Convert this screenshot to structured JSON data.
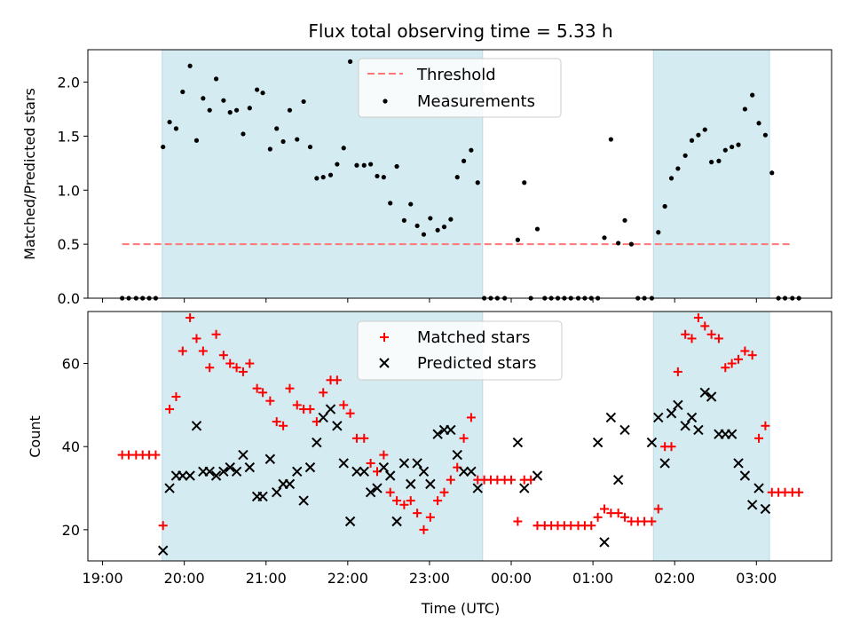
{
  "chart_data": {
    "type": "scatter",
    "title": "Flux total observing time = 5.33 h",
    "xlabel": "Time (UTC)",
    "x_ticks": [
      {
        "h": 19,
        "label": "19:00"
      },
      {
        "h": 20,
        "label": "20:00"
      },
      {
        "h": 21,
        "label": "21:00"
      },
      {
        "h": 22,
        "label": "22:00"
      },
      {
        "h": 23,
        "label": "23:00"
      },
      {
        "h": 24,
        "label": "00:00"
      },
      {
        "h": 25,
        "label": "01:00"
      },
      {
        "h": 26,
        "label": "02:00"
      },
      {
        "h": 27,
        "label": "03:00"
      }
    ],
    "xlim": [
      18.82,
      27.92
    ],
    "shaded_spans": [
      [
        19.73,
        23.65
      ],
      [
        25.74,
        27.16
      ]
    ],
    "top": {
      "ylabel": "Matched/Predicted stars",
      "ylim": [
        0,
        2.3
      ],
      "yticks": [
        0,
        0.5,
        1.0,
        1.5,
        2.0
      ],
      "ytick_labels": [
        "0.0",
        "0.5",
        "1.0",
        "1.5",
        "2.0"
      ],
      "threshold": {
        "name": "Threshold",
        "y": 0.5,
        "x_range": [
          19.24,
          27.45
        ],
        "color": "#ff7777"
      },
      "measurements_name": "Measurements",
      "measurements": [
        [
          19.24,
          0
        ],
        [
          19.32,
          0
        ],
        [
          19.41,
          0
        ],
        [
          19.49,
          0
        ],
        [
          19.57,
          0
        ],
        [
          19.65,
          0
        ],
        [
          19.74,
          1.4
        ],
        [
          19.82,
          1.63
        ],
        [
          19.9,
          1.57
        ],
        [
          19.98,
          1.91
        ],
        [
          20.07,
          2.15
        ],
        [
          20.15,
          1.46
        ],
        [
          20.23,
          1.85
        ],
        [
          20.31,
          1.74
        ],
        [
          20.39,
          2.03
        ],
        [
          20.48,
          1.83
        ],
        [
          20.56,
          1.72
        ],
        [
          20.64,
          1.74
        ],
        [
          20.72,
          1.52
        ],
        [
          20.8,
          1.76
        ],
        [
          20.89,
          1.93
        ],
        [
          20.96,
          1.9
        ],
        [
          21.05,
          1.38
        ],
        [
          21.13,
          1.57
        ],
        [
          21.21,
          1.45
        ],
        [
          21.29,
          1.74
        ],
        [
          21.38,
          1.47
        ],
        [
          21.46,
          1.82
        ],
        [
          21.54,
          1.4
        ],
        [
          21.62,
          1.11
        ],
        [
          21.7,
          1.12
        ],
        [
          21.79,
          1.14
        ],
        [
          21.87,
          1.24
        ],
        [
          21.95,
          1.39
        ],
        [
          22.03,
          2.19
        ],
        [
          22.11,
          1.23
        ],
        [
          22.2,
          1.23
        ],
        [
          22.28,
          1.24
        ],
        [
          22.36,
          1.13
        ],
        [
          22.44,
          1.12
        ],
        [
          22.52,
          0.88
        ],
        [
          22.6,
          1.22
        ],
        [
          22.69,
          0.72
        ],
        [
          22.77,
          0.87
        ],
        [
          22.85,
          0.67
        ],
        [
          22.93,
          0.59
        ],
        [
          23.01,
          0.74
        ],
        [
          23.1,
          0.63
        ],
        [
          23.18,
          0.66
        ],
        [
          23.26,
          0.73
        ],
        [
          23.34,
          1.12
        ],
        [
          23.42,
          1.27
        ],
        [
          23.51,
          1.37
        ],
        [
          23.59,
          1.07
        ],
        [
          23.67,
          0
        ],
        [
          23.75,
          0
        ],
        [
          23.83,
          0
        ],
        [
          23.92,
          0
        ],
        [
          24.08,
          0.54
        ],
        [
          24.16,
          1.07
        ],
        [
          24.24,
          0
        ],
        [
          24.32,
          0.64
        ],
        [
          24.41,
          0
        ],
        [
          24.49,
          0
        ],
        [
          24.57,
          0
        ],
        [
          24.65,
          0
        ],
        [
          24.73,
          0
        ],
        [
          24.82,
          0
        ],
        [
          24.9,
          0
        ],
        [
          24.98,
          0
        ],
        [
          25.06,
          0
        ],
        [
          25.14,
          0.56
        ],
        [
          25.22,
          1.47
        ],
        [
          25.31,
          0.51
        ],
        [
          25.39,
          0.72
        ],
        [
          25.47,
          0.5
        ],
        [
          25.55,
          0
        ],
        [
          25.63,
          0
        ],
        [
          25.72,
          0
        ],
        [
          25.8,
          0.61
        ],
        [
          25.88,
          0.85
        ],
        [
          25.96,
          1.11
        ],
        [
          26.04,
          1.2
        ],
        [
          26.13,
          1.32
        ],
        [
          26.21,
          1.46
        ],
        [
          26.29,
          1.51
        ],
        [
          26.37,
          1.56
        ],
        [
          26.45,
          1.26
        ],
        [
          26.54,
          1.27
        ],
        [
          26.62,
          1.37
        ],
        [
          26.7,
          1.4
        ],
        [
          26.78,
          1.42
        ],
        [
          26.86,
          1.75
        ],
        [
          26.95,
          1.88
        ],
        [
          27.03,
          1.62
        ],
        [
          27.11,
          1.51
        ],
        [
          27.19,
          1.16
        ],
        [
          27.27,
          0
        ],
        [
          27.35,
          0
        ],
        [
          27.44,
          0
        ],
        [
          27.52,
          0
        ]
      ]
    },
    "bottom": {
      "ylabel": "Count",
      "ylim": [
        12.5,
        72.5
      ],
      "yticks": [
        20,
        40,
        60
      ],
      "ytick_labels": [
        "20",
        "40",
        "60"
      ],
      "matched_name": "Matched stars",
      "predicted_name": "Predicted stars",
      "matched_color": "#ff0000",
      "predicted_color": "#000000",
      "matched": [
        [
          19.24,
          38
        ],
        [
          19.32,
          38
        ],
        [
          19.41,
          38
        ],
        [
          19.49,
          38
        ],
        [
          19.57,
          38
        ],
        [
          19.65,
          38
        ],
        [
          19.74,
          21
        ],
        [
          19.82,
          49
        ],
        [
          19.9,
          52
        ],
        [
          19.98,
          63
        ],
        [
          20.07,
          71
        ],
        [
          20.15,
          66
        ],
        [
          20.23,
          63
        ],
        [
          20.31,
          59
        ],
        [
          20.39,
          67
        ],
        [
          20.48,
          62
        ],
        [
          20.56,
          60
        ],
        [
          20.64,
          59
        ],
        [
          20.72,
          58
        ],
        [
          20.8,
          60
        ],
        [
          20.89,
          54
        ],
        [
          20.96,
          53
        ],
        [
          21.05,
          51
        ],
        [
          21.13,
          46
        ],
        [
          21.21,
          45
        ],
        [
          21.29,
          54
        ],
        [
          21.38,
          50
        ],
        [
          21.46,
          49
        ],
        [
          21.54,
          49
        ],
        [
          21.62,
          46
        ],
        [
          21.7,
          53
        ],
        [
          21.79,
          56
        ],
        [
          21.87,
          56
        ],
        [
          21.95,
          50
        ],
        [
          22.03,
          48
        ],
        [
          22.11,
          42
        ],
        [
          22.2,
          42
        ],
        [
          22.28,
          36
        ],
        [
          22.36,
          34
        ],
        [
          22.44,
          38
        ],
        [
          22.52,
          29
        ],
        [
          22.6,
          27
        ],
        [
          22.69,
          26
        ],
        [
          22.77,
          27
        ],
        [
          22.85,
          24
        ],
        [
          22.93,
          20
        ],
        [
          23.01,
          23
        ],
        [
          23.1,
          27
        ],
        [
          23.18,
          29
        ],
        [
          23.26,
          32
        ],
        [
          23.34,
          35
        ],
        [
          23.42,
          42
        ],
        [
          23.51,
          47
        ],
        [
          23.59,
          32
        ],
        [
          23.67,
          32
        ],
        [
          23.75,
          32
        ],
        [
          23.83,
          32
        ],
        [
          23.92,
          32
        ],
        [
          24.0,
          32
        ],
        [
          24.08,
          22
        ],
        [
          24.16,
          32
        ],
        [
          24.24,
          32
        ],
        [
          24.32,
          21
        ],
        [
          24.41,
          21
        ],
        [
          24.49,
          21
        ],
        [
          24.57,
          21
        ],
        [
          24.65,
          21
        ],
        [
          24.73,
          21
        ],
        [
          24.82,
          21
        ],
        [
          24.9,
          21
        ],
        [
          24.98,
          21
        ],
        [
          25.06,
          23
        ],
        [
          25.14,
          25
        ],
        [
          25.22,
          24
        ],
        [
          25.31,
          24
        ],
        [
          25.39,
          23
        ],
        [
          25.47,
          22
        ],
        [
          25.55,
          22
        ],
        [
          25.63,
          22
        ],
        [
          25.72,
          22
        ],
        [
          25.8,
          25
        ],
        [
          25.88,
          40
        ],
        [
          25.96,
          40
        ],
        [
          26.04,
          58
        ],
        [
          26.13,
          67
        ],
        [
          26.21,
          66
        ],
        [
          26.29,
          71
        ],
        [
          26.37,
          69
        ],
        [
          26.45,
          67
        ],
        [
          26.54,
          66
        ],
        [
          26.62,
          59
        ],
        [
          26.7,
          60
        ],
        [
          26.78,
          61
        ],
        [
          26.86,
          63
        ],
        [
          26.95,
          62
        ],
        [
          27.03,
          42
        ],
        [
          27.11,
          45
        ],
        [
          27.19,
          29
        ],
        [
          27.27,
          29
        ],
        [
          27.35,
          29
        ],
        [
          27.44,
          29
        ],
        [
          27.52,
          29
        ]
      ],
      "predicted": [
        [
          19.74,
          15
        ],
        [
          19.82,
          30
        ],
        [
          19.9,
          33
        ],
        [
          19.98,
          33
        ],
        [
          20.07,
          33
        ],
        [
          20.15,
          45
        ],
        [
          20.23,
          34
        ],
        [
          20.31,
          34
        ],
        [
          20.39,
          33
        ],
        [
          20.48,
          34
        ],
        [
          20.56,
          35
        ],
        [
          20.64,
          34
        ],
        [
          20.72,
          38
        ],
        [
          20.8,
          35
        ],
        [
          20.89,
          28
        ],
        [
          20.96,
          28
        ],
        [
          21.05,
          37
        ],
        [
          21.13,
          29
        ],
        [
          21.21,
          31
        ],
        [
          21.29,
          31
        ],
        [
          21.38,
          34
        ],
        [
          21.46,
          27
        ],
        [
          21.54,
          35
        ],
        [
          21.62,
          41
        ],
        [
          21.7,
          47
        ],
        [
          21.79,
          49
        ],
        [
          21.87,
          45
        ],
        [
          21.95,
          36
        ],
        [
          22.03,
          22
        ],
        [
          22.11,
          34
        ],
        [
          22.2,
          34
        ],
        [
          22.28,
          29
        ],
        [
          22.36,
          30
        ],
        [
          22.44,
          35
        ],
        [
          22.52,
          33
        ],
        [
          22.6,
          22
        ],
        [
          22.69,
          36
        ],
        [
          22.77,
          31
        ],
        [
          22.85,
          36
        ],
        [
          22.93,
          34
        ],
        [
          23.01,
          31
        ],
        [
          23.1,
          43
        ],
        [
          23.18,
          44
        ],
        [
          23.26,
          44
        ],
        [
          23.34,
          38
        ],
        [
          23.42,
          34
        ],
        [
          23.51,
          34
        ],
        [
          23.59,
          30
        ],
        [
          24.08,
          41
        ],
        [
          24.16,
          30
        ],
        [
          24.32,
          33
        ],
        [
          25.06,
          41
        ],
        [
          25.14,
          17
        ],
        [
          25.22,
          47
        ],
        [
          25.31,
          32
        ],
        [
          25.39,
          44
        ],
        [
          25.72,
          41
        ],
        [
          25.8,
          47
        ],
        [
          25.88,
          36
        ],
        [
          25.96,
          48
        ],
        [
          26.04,
          50
        ],
        [
          26.13,
          45
        ],
        [
          26.21,
          47
        ],
        [
          26.29,
          44
        ],
        [
          26.37,
          53
        ],
        [
          26.45,
          52
        ],
        [
          26.54,
          43
        ],
        [
          26.62,
          43
        ],
        [
          26.7,
          43
        ],
        [
          26.78,
          36
        ],
        [
          26.86,
          33
        ],
        [
          26.95,
          26
        ],
        [
          27.03,
          30
        ],
        [
          27.11,
          25
        ]
      ]
    },
    "legend_placement": "upper center",
    "grid": false,
    "shade_color": "#d4ebf1"
  }
}
